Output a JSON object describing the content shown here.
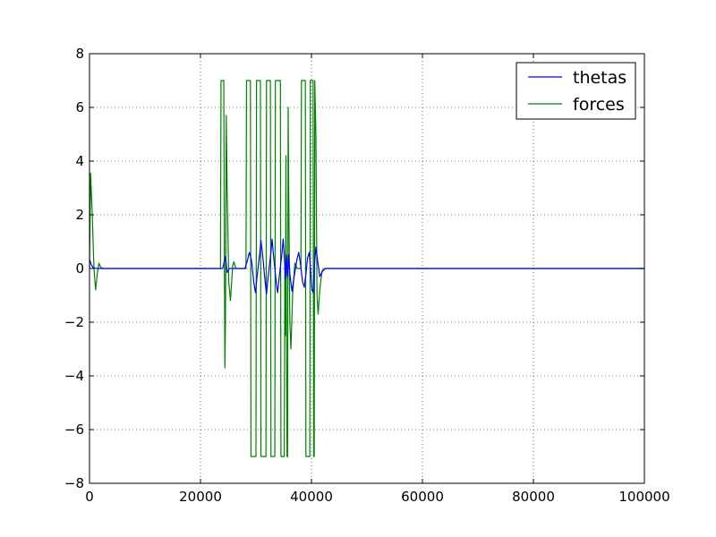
{
  "chart_data": {
    "type": "line",
    "title": "",
    "xlabel": "",
    "ylabel": "",
    "xlim": [
      0,
      100000
    ],
    "ylim": [
      -8,
      8
    ],
    "grid": true,
    "grid_style": "dotted",
    "legend_position": "top-right",
    "x_ticks": [
      0,
      20000,
      40000,
      60000,
      80000,
      100000
    ],
    "x_tick_labels": [
      "0",
      "20000",
      "40000",
      "60000",
      "80000",
      "100000"
    ],
    "y_ticks": [
      -8,
      -6,
      -4,
      -2,
      0,
      2,
      4,
      6,
      8
    ],
    "y_tick_labels": [
      "−8",
      "−6",
      "−4",
      "−2",
      "0",
      "2",
      "4",
      "6",
      "8"
    ],
    "series": [
      {
        "name": "thetas",
        "color": "#0000ff",
        "points": [
          [
            0,
            0.35
          ],
          [
            300,
            0.15
          ],
          [
            700,
            0.02
          ],
          [
            1500,
            0
          ],
          [
            2500,
            0
          ],
          [
            24000,
            0
          ],
          [
            24500,
            0.45
          ],
          [
            24800,
            -0.15
          ],
          [
            25200,
            0
          ],
          [
            28000,
            0
          ],
          [
            28400,
            0.25
          ],
          [
            28800,
            0.6
          ],
          [
            29200,
            0.3
          ],
          [
            29600,
            -0.5
          ],
          [
            29900,
            -0.9
          ],
          [
            30200,
            -0.3
          ],
          [
            30700,
            0.6
          ],
          [
            30900,
            1.05
          ],
          [
            31200,
            0.5
          ],
          [
            31700,
            -0.6
          ],
          [
            31900,
            -0.95
          ],
          [
            32200,
            -0.3
          ],
          [
            32700,
            0.6
          ],
          [
            32900,
            1.1
          ],
          [
            33200,
            0.4
          ],
          [
            33700,
            -0.6
          ],
          [
            33900,
            -0.9
          ],
          [
            34200,
            -0.3
          ],
          [
            34700,
            0.6
          ],
          [
            34900,
            1.1
          ],
          [
            35100,
            0.5
          ],
          [
            35300,
            -0.4
          ],
          [
            35500,
            0.5
          ],
          [
            35700,
            -0.3
          ],
          [
            35900,
            0.5
          ],
          [
            36100,
            -0.2
          ],
          [
            36500,
            -0.85
          ],
          [
            36800,
            -0.4
          ],
          [
            37400,
            0.35
          ],
          [
            37700,
            0.6
          ],
          [
            38000,
            0.2
          ],
          [
            38400,
            -0.5
          ],
          [
            38700,
            -0.7
          ],
          [
            39000,
            -0.2
          ],
          [
            39300,
            0.4
          ],
          [
            39600,
            0.6
          ],
          [
            39900,
            -0.2
          ],
          [
            40100,
            -0.8
          ],
          [
            40300,
            -0.9
          ],
          [
            40600,
            0.3
          ],
          [
            40800,
            0.8
          ],
          [
            41100,
            0.3
          ],
          [
            41500,
            -0.3
          ],
          [
            42000,
            -0.1
          ],
          [
            42500,
            0
          ],
          [
            43000,
            0
          ],
          [
            100000,
            0
          ]
        ]
      },
      {
        "name": "forces",
        "color": "#008000",
        "points": [
          [
            0,
            0
          ],
          [
            200,
            3.55
          ],
          [
            500,
            2.0
          ],
          [
            800,
            0.0
          ],
          [
            1100,
            -0.8
          ],
          [
            1400,
            -0.2
          ],
          [
            1700,
            0.2
          ],
          [
            2000,
            0.05
          ],
          [
            2500,
            0
          ],
          [
            23600,
            0
          ],
          [
            23700,
            7
          ],
          [
            24200,
            7
          ],
          [
            24300,
            0.5
          ],
          [
            24400,
            -3.7
          ],
          [
            24500,
            -2.0
          ],
          [
            24650,
            5.7
          ],
          [
            24800,
            3.0
          ],
          [
            25100,
            -0.5
          ],
          [
            25400,
            -1.2
          ],
          [
            25800,
            0.1
          ],
          [
            26000,
            0.25
          ],
          [
            26400,
            0
          ],
          [
            28200,
            0
          ],
          [
            28300,
            7
          ],
          [
            29000,
            7
          ],
          [
            29100,
            -7
          ],
          [
            30000,
            -7
          ],
          [
            30100,
            7
          ],
          [
            30800,
            7
          ],
          [
            30900,
            -7
          ],
          [
            31800,
            -7
          ],
          [
            31900,
            7
          ],
          [
            32600,
            7
          ],
          [
            32700,
            -7
          ],
          [
            33400,
            -7
          ],
          [
            33500,
            7
          ],
          [
            34400,
            7
          ],
          [
            34500,
            -7
          ],
          [
            35100,
            -7
          ],
          [
            35200,
            0.1
          ],
          [
            35300,
            -2.5
          ],
          [
            35400,
            4.2
          ],
          [
            35500,
            -2.5
          ],
          [
            35600,
            -7
          ],
          [
            35700,
            -7
          ],
          [
            35800,
            6.0
          ],
          [
            35900,
            3.0
          ],
          [
            36100,
            -2.0
          ],
          [
            36300,
            -3.0
          ],
          [
            36600,
            -1.0
          ],
          [
            37000,
            0.2
          ],
          [
            37400,
            0
          ],
          [
            38100,
            0
          ],
          [
            38200,
            7
          ],
          [
            38900,
            7
          ],
          [
            39000,
            -7
          ],
          [
            39700,
            -7
          ],
          [
            39800,
            7
          ],
          [
            40300,
            7
          ],
          [
            40400,
            -7
          ],
          [
            40500,
            -7
          ],
          [
            40600,
            7
          ],
          [
            40800,
            5.0
          ],
          [
            41000,
            -1.0
          ],
          [
            41200,
            -1.7
          ],
          [
            41500,
            -0.8
          ],
          [
            41900,
            -0.1
          ],
          [
            42300,
            0
          ],
          [
            100000,
            0
          ]
        ]
      }
    ]
  }
}
